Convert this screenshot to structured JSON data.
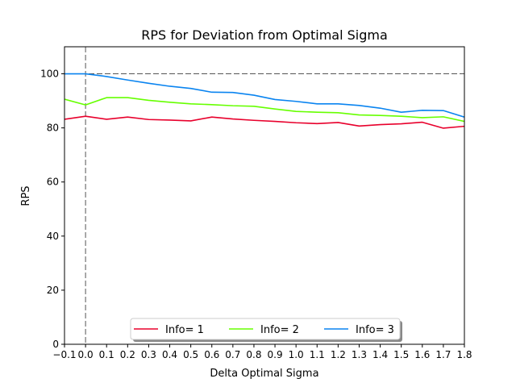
{
  "chart_data": {
    "type": "line",
    "title": "RPS for Deviation from Optimal Sigma",
    "xlabel": "Delta Optimal Sigma",
    "ylabel": "RPS",
    "xlim": [
      -0.1,
      1.8
    ],
    "ylim": [
      0,
      110
    ],
    "xticks": [
      -0.1,
      0.0,
      0.1,
      0.2,
      0.3,
      0.4,
      0.5,
      0.6,
      0.7,
      0.8,
      0.9,
      1.0,
      1.1,
      1.2,
      1.3,
      1.4,
      1.5,
      1.6,
      1.7,
      1.8
    ],
    "xtick_labels": [
      "−0.1",
      "0.0",
      "0.1",
      "0.2",
      "0.3",
      "0.4",
      "0.5",
      "0.6",
      "0.7",
      "0.8",
      "0.9",
      "1.0",
      "1.1",
      "1.2",
      "1.3",
      "1.4",
      "1.5",
      "1.6",
      "1.7",
      "1.8"
    ],
    "yticks": [
      0,
      20,
      40,
      60,
      80,
      100
    ],
    "reference_lines": {
      "horizontal_y": 100,
      "vertical_x": 0.0
    },
    "grid": false,
    "legend_position": "lower center",
    "x": [
      -0.1,
      0.0,
      0.1,
      0.2,
      0.3,
      0.4,
      0.5,
      0.6,
      0.7,
      0.8,
      0.9,
      1.0,
      1.1,
      1.2,
      1.3,
      1.4,
      1.5,
      1.6,
      1.7,
      1.8
    ],
    "series": [
      {
        "name": "Info= 1",
        "color": "#e8002c",
        "values": [
          83.2,
          84.3,
          83.2,
          84.0,
          83.1,
          82.9,
          82.6,
          84.0,
          83.3,
          82.8,
          82.4,
          81.9,
          81.6,
          82.0,
          80.7,
          81.2,
          81.5,
          82.1,
          79.9,
          80.6
        ]
      },
      {
        "name": "Info= 2",
        "color": "#66ff00",
        "values": [
          90.6,
          88.5,
          91.2,
          91.2,
          90.2,
          89.5,
          88.9,
          88.6,
          88.2,
          88.0,
          87.0,
          86.1,
          85.8,
          85.6,
          84.8,
          84.6,
          84.3,
          83.8,
          84.1,
          82.4
        ]
      },
      {
        "name": "Info= 3",
        "color": "#0a84f0",
        "values": [
          100.0,
          100.0,
          99.0,
          97.7,
          96.5,
          95.4,
          94.6,
          93.2,
          93.1,
          92.1,
          90.5,
          89.8,
          88.9,
          88.9,
          88.3,
          87.3,
          85.8,
          86.5,
          86.4,
          84.0
        ]
      }
    ]
  }
}
